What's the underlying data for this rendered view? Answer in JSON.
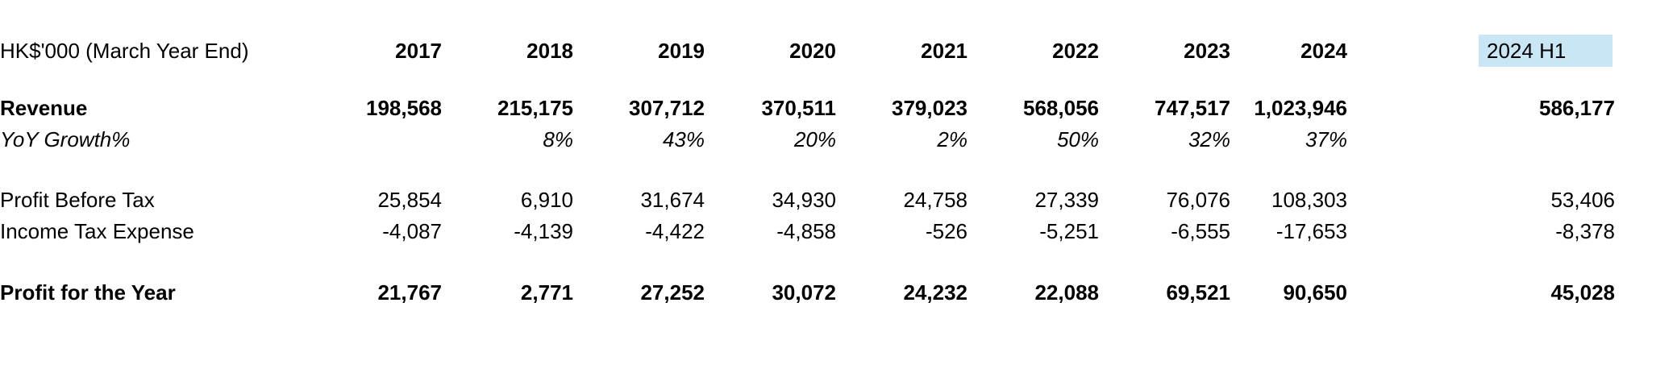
{
  "table": {
    "unit_label": "HK$'000 (March Year End)",
    "columns": [
      "2017",
      "2018",
      "2019",
      "2020",
      "2021",
      "2022",
      "2023",
      "2024"
    ],
    "h1_column": "2024 H1",
    "highlight_color": "#c8e6f4",
    "text_color": "#000000",
    "background_color": "#ffffff",
    "rows": [
      {
        "label": "Revenue",
        "style": "bold",
        "values": [
          "198,568",
          "215,175",
          "307,712",
          "370,511",
          "379,023",
          "568,056",
          "747,517",
          "1,023,946"
        ],
        "h1": "586,177"
      },
      {
        "label": "YoY Growth%",
        "style": "italic",
        "values": [
          "",
          "8%",
          "43%",
          "20%",
          "2%",
          "50%",
          "32%",
          "37%"
        ],
        "h1": ""
      },
      {
        "label": "Profit Before Tax",
        "style": "regular",
        "values": [
          "25,854",
          "6,910",
          "31,674",
          "34,930",
          "24,758",
          "27,339",
          "76,076",
          "108,303"
        ],
        "h1": "53,406"
      },
      {
        "label": "Income Tax Expense",
        "style": "regular",
        "values": [
          "-4,087",
          "-4,139",
          "-4,422",
          "-4,858",
          "-526",
          "-5,251",
          "-6,555",
          "-17,653"
        ],
        "h1": "-8,378"
      },
      {
        "label": "Profit for the Year",
        "style": "bold",
        "values": [
          "21,767",
          "2,771",
          "27,252",
          "30,072",
          "24,232",
          "22,088",
          "69,521",
          "90,650"
        ],
        "h1": "45,028"
      }
    ]
  }
}
